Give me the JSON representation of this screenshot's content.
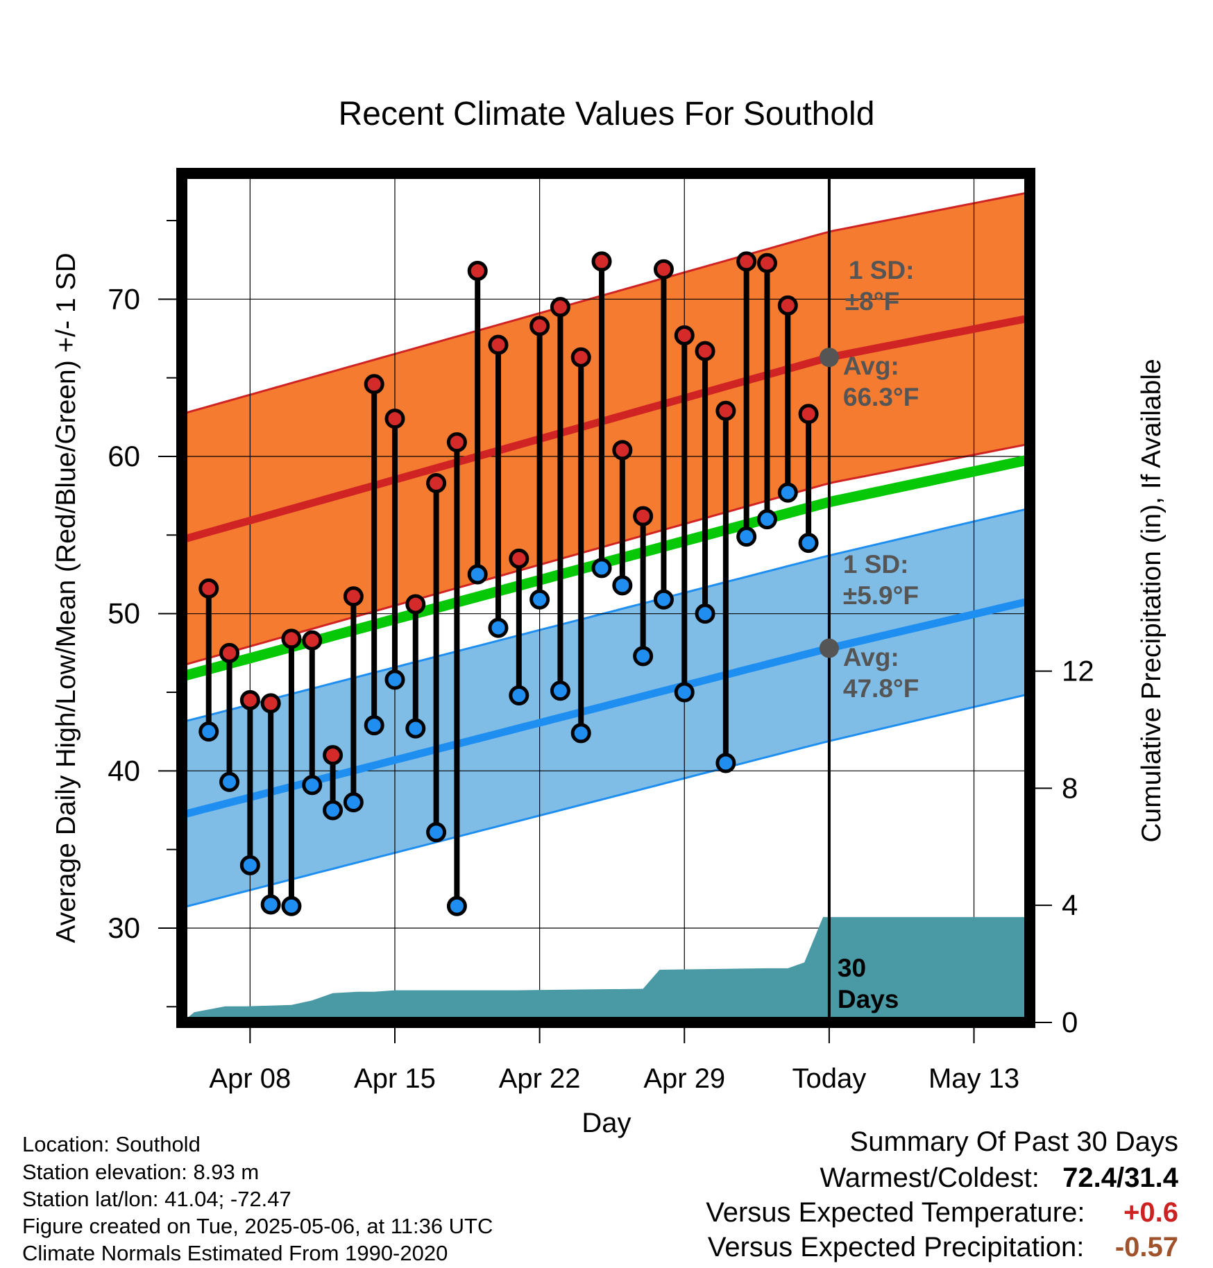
{
  "chart_data": {
    "type": "line",
    "title": "Recent Climate Values For Southold",
    "xlabel": "Day",
    "ylabel": "Average Daily High/Low/Mean (Red/Blue/Green) +/- 1 SD",
    "ylabel_right": "Cumulative Precipitation (in), If Available",
    "x_tick_labels": [
      "Apr 08",
      "Apr 15",
      "Apr 22",
      "Apr 29",
      "Today",
      "May 13"
    ],
    "x_tick_days": [
      8,
      15,
      22,
      29,
      36,
      43
    ],
    "y_ticks": [
      30,
      40,
      50,
      60,
      70
    ],
    "y2_ticks": [
      0,
      4,
      8,
      12
    ],
    "xlim": [
      4.7,
      45.7
    ],
    "ylim": [
      24,
      78
    ],
    "y2lim": [
      0,
      29
    ],
    "today_day": 36,
    "days": [
      6,
      7,
      8,
      9,
      10,
      11,
      12,
      13,
      14,
      15,
      16,
      17,
      18,
      19,
      20,
      21,
      22,
      23,
      24,
      25,
      26,
      27,
      28,
      29,
      30,
      31,
      32,
      33,
      34,
      35
    ],
    "highs": [
      51.6,
      47.5,
      44.5,
      44.3,
      48.4,
      48.3,
      41.0,
      51.1,
      64.6,
      62.4,
      50.6,
      58.3,
      60.9,
      71.8,
      67.1,
      53.5,
      68.3,
      69.5,
      66.3,
      72.4,
      60.4,
      56.2,
      71.9,
      67.7,
      66.7,
      62.9,
      72.4,
      72.3,
      69.6,
      62.7
    ],
    "lows": [
      42.5,
      39.3,
      34.0,
      31.5,
      31.4,
      39.1,
      37.5,
      38.0,
      42.9,
      45.8,
      42.7,
      36.1,
      31.4,
      52.5,
      49.1,
      44.8,
      50.9,
      45.1,
      42.4,
      52.9,
      51.8,
      47.3,
      50.9,
      45.0,
      50.0,
      40.5,
      54.9,
      56.0,
      57.7,
      54.5
    ],
    "normal_high": {
      "x": [
        4.7,
        36,
        45.7
      ],
      "values": [
        54.7,
        66.3,
        68.8
      ],
      "sd": 8.0
    },
    "normal_low": {
      "x": [
        4.7,
        36,
        45.7
      ],
      "values": [
        37.2,
        47.8,
        50.8
      ],
      "sd": 5.9
    },
    "normal_mean": {
      "x": [
        4.7,
        36,
        45.7
      ],
      "values": [
        46.0,
        57.1,
        59.8
      ]
    },
    "precip": {
      "x": [
        4.7,
        5.3,
        6.8,
        7.8,
        10.0,
        11.0,
        12.0,
        13.2,
        14.0,
        15.0,
        21.0,
        27.0,
        27.8,
        33.0,
        34.0,
        34.8,
        35.7,
        36.0,
        45.7
      ],
      "values": [
        0.0,
        0.35,
        0.55,
        0.55,
        0.6,
        0.75,
        1.0,
        1.05,
        1.05,
        1.1,
        1.1,
        1.15,
        1.8,
        1.85,
        1.85,
        2.05,
        3.6,
        3.6,
        3.6
      ]
    },
    "annotations": {
      "high_sd_label": "1 SD:",
      "high_sd_value": "±8°F",
      "high_avg_label": "Avg:",
      "high_avg_value": "66.3°F",
      "low_sd_label": "1 SD:",
      "low_sd_value": "±5.9°F",
      "low_avg_label": "Avg:",
      "low_avg_value": "47.8°F",
      "days_line1": "30",
      "days_line2": "Days"
    },
    "colors": {
      "high_band": "#f47b2f",
      "high_line": "#d02424",
      "low_band": "#80bde6",
      "low_line": "#1e8ef0",
      "mean_line": "#06c806",
      "precip": "#4a9aa6",
      "high_dot": "#d42a2a",
      "low_dot": "#1f8ef0",
      "annotation": "#555555"
    }
  },
  "info": {
    "location": "Location: Southold",
    "elevation": "Station elevation: 8.93 m",
    "latlon": "Station lat/lon: 41.04; -72.47",
    "created": "Figure created on Tue, 2025-05-06, at 11:36 UTC",
    "normals": "Climate Normals Estimated From 1990-2020"
  },
  "summary": {
    "heading": "Summary Of Past 30 Days",
    "warmest_label": "Warmest/Coldest:",
    "warmest_value": "72.4/31.4",
    "temp_label": "Versus Expected Temperature:",
    "temp_value": "+0.6",
    "temp_color": "#cc2222",
    "precip_label": "Versus Expected Precipitation:",
    "precip_value": "-0.57",
    "precip_color": "#a0522d"
  }
}
